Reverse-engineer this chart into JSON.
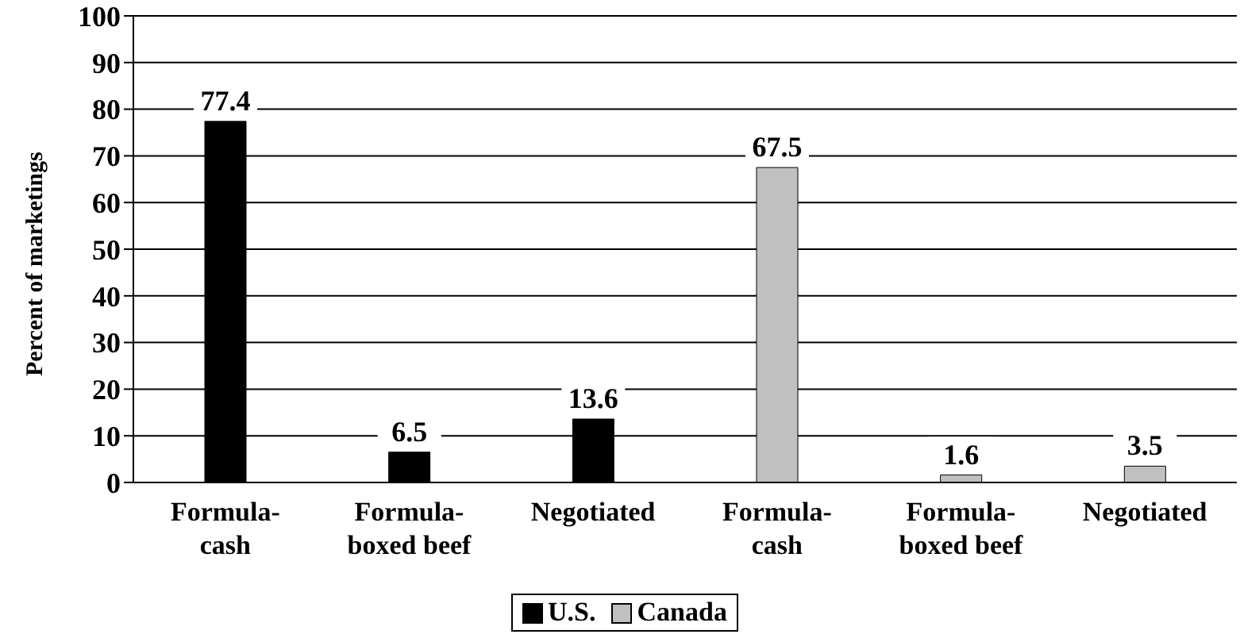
{
  "chart_data": {
    "type": "bar",
    "ylabel": "Percent of marketings",
    "categories": [
      "Formula-cash",
      "Formula-boxed beef",
      "Negotiated",
      "Formula-cash",
      "Formula-boxed beef",
      "Negotiated"
    ],
    "series": [
      {
        "name": "U.S.",
        "color": "#000000",
        "values": [
          77.4,
          6.5,
          13.6,
          null,
          null,
          null
        ]
      },
      {
        "name": "Canada",
        "color": "#c0c0c0",
        "values": [
          null,
          null,
          null,
          67.5,
          1.6,
          3.5
        ]
      }
    ],
    "stacked": true,
    "ylim": [
      0,
      100
    ],
    "yticks": [
      0,
      10,
      20,
      30,
      40,
      50,
      60,
      70,
      80,
      90,
      100
    ],
    "grid": "y",
    "legend": "bottom",
    "data_labels": true
  }
}
